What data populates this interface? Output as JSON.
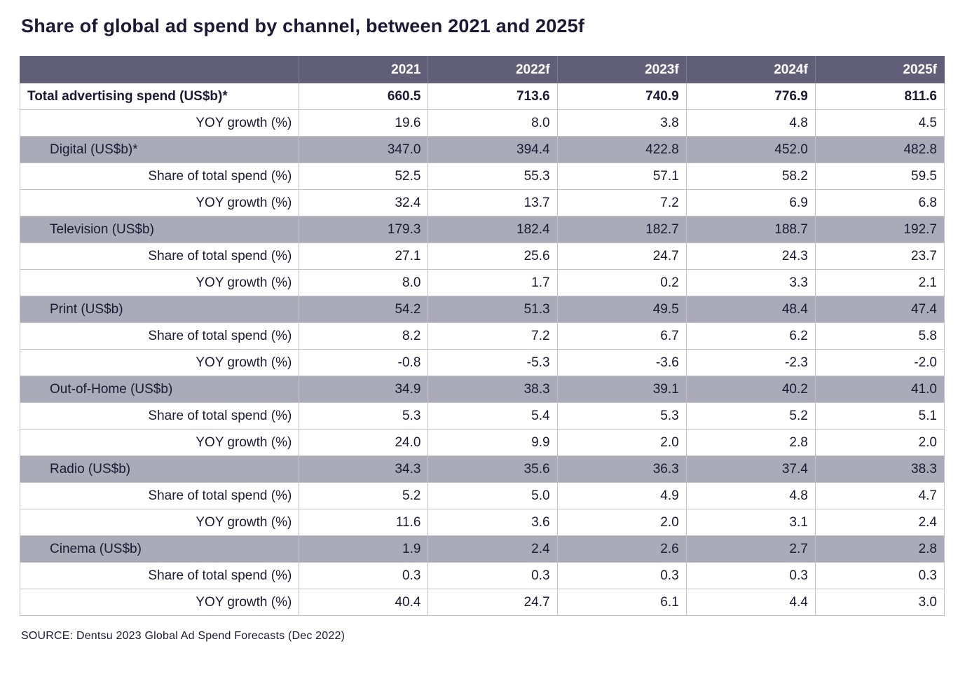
{
  "page": {
    "title": "Share of global ad spend by channel, between 2021 and 2025f",
    "source": "SOURCE: Dentsu 2023 Global Ad Spend Forecasts (Dec 2022)"
  },
  "colors": {
    "header_bg": "#615e77",
    "header_text": "#ffffff",
    "channel_bg": "#abaab8",
    "text": "#1b1933",
    "border": "#c2c1c9",
    "header_border": "#7b7891"
  },
  "chart_data": {
    "type": "table",
    "title": "Share of global ad spend by channel, between 2021 and 2025f",
    "columns": [
      "",
      "2021",
      "2022f",
      "2023f",
      "2024f",
      "2025f"
    ],
    "rows": [
      {
        "label": "Total advertising spend (US$b)*",
        "style": "total",
        "values": [
          "660.5",
          "713.6",
          "740.9",
          "776.9",
          "811.6"
        ]
      },
      {
        "label": "YOY growth (%)",
        "style": "sub",
        "values": [
          "19.6",
          "8.0",
          "3.8",
          "4.8",
          "4.5"
        ]
      },
      {
        "label": "Digital (US$b)*",
        "style": "channel",
        "values": [
          "347.0",
          "394.4",
          "422.8",
          "452.0",
          "482.8"
        ]
      },
      {
        "label": "Share of total spend (%)",
        "style": "sub",
        "values": [
          "52.5",
          "55.3",
          "57.1",
          "58.2",
          "59.5"
        ]
      },
      {
        "label": "YOY growth (%)",
        "style": "sub",
        "values": [
          "32.4",
          "13.7",
          "7.2",
          "6.9",
          "6.8"
        ]
      },
      {
        "label": "Television (US$b)",
        "style": "channel",
        "values": [
          "179.3",
          "182.4",
          "182.7",
          "188.7",
          "192.7"
        ]
      },
      {
        "label": "Share of total spend (%)",
        "style": "sub",
        "values": [
          "27.1",
          "25.6",
          "24.7",
          "24.3",
          "23.7"
        ]
      },
      {
        "label": "YOY growth (%)",
        "style": "sub",
        "values": [
          "8.0",
          "1.7",
          "0.2",
          "3.3",
          "2.1"
        ]
      },
      {
        "label": "Print (US$b)",
        "style": "channel",
        "values": [
          "54.2",
          "51.3",
          "49.5",
          "48.4",
          "47.4"
        ]
      },
      {
        "label": "Share of total spend (%)",
        "style": "sub",
        "values": [
          "8.2",
          "7.2",
          "6.7",
          "6.2",
          "5.8"
        ]
      },
      {
        "label": "YOY growth (%)",
        "style": "sub",
        "values": [
          "-0.8",
          "-5.3",
          "-3.6",
          "-2.3",
          "-2.0"
        ]
      },
      {
        "label": "Out-of-Home (US$b)",
        "style": "channel",
        "values": [
          "34.9",
          "38.3",
          "39.1",
          "40.2",
          "41.0"
        ]
      },
      {
        "label": "Share of total spend (%)",
        "style": "sub",
        "values": [
          "5.3",
          "5.4",
          "5.3",
          "5.2",
          "5.1"
        ]
      },
      {
        "label": "YOY growth (%)",
        "style": "sub",
        "values": [
          "24.0",
          "9.9",
          "2.0",
          "2.8",
          "2.0"
        ]
      },
      {
        "label": "Radio (US$b)",
        "style": "channel",
        "values": [
          "34.3",
          "35.6",
          "36.3",
          "37.4",
          "38.3"
        ]
      },
      {
        "label": "Share of total spend (%)",
        "style": "sub",
        "values": [
          "5.2",
          "5.0",
          "4.9",
          "4.8",
          "4.7"
        ]
      },
      {
        "label": "YOY growth (%)",
        "style": "sub",
        "values": [
          "11.6",
          "3.6",
          "2.0",
          "3.1",
          "2.4"
        ]
      },
      {
        "label": "Cinema (US$b)",
        "style": "channel",
        "values": [
          "1.9",
          "2.4",
          "2.6",
          "2.7",
          "2.8"
        ]
      },
      {
        "label": "Share of total spend (%)",
        "style": "sub",
        "values": [
          "0.3",
          "0.3",
          "0.3",
          "0.3",
          "0.3"
        ]
      },
      {
        "label": "YOY growth (%)",
        "style": "sub",
        "values": [
          "40.4",
          "24.7",
          "6.1",
          "4.4",
          "3.0"
        ]
      }
    ],
    "source": "SOURCE: Dentsu 2023 Global Ad Spend Forecasts (Dec 2022)",
    "layout": {
      "grid": true,
      "label_column_align": "mixed",
      "value_align": "right"
    }
  }
}
